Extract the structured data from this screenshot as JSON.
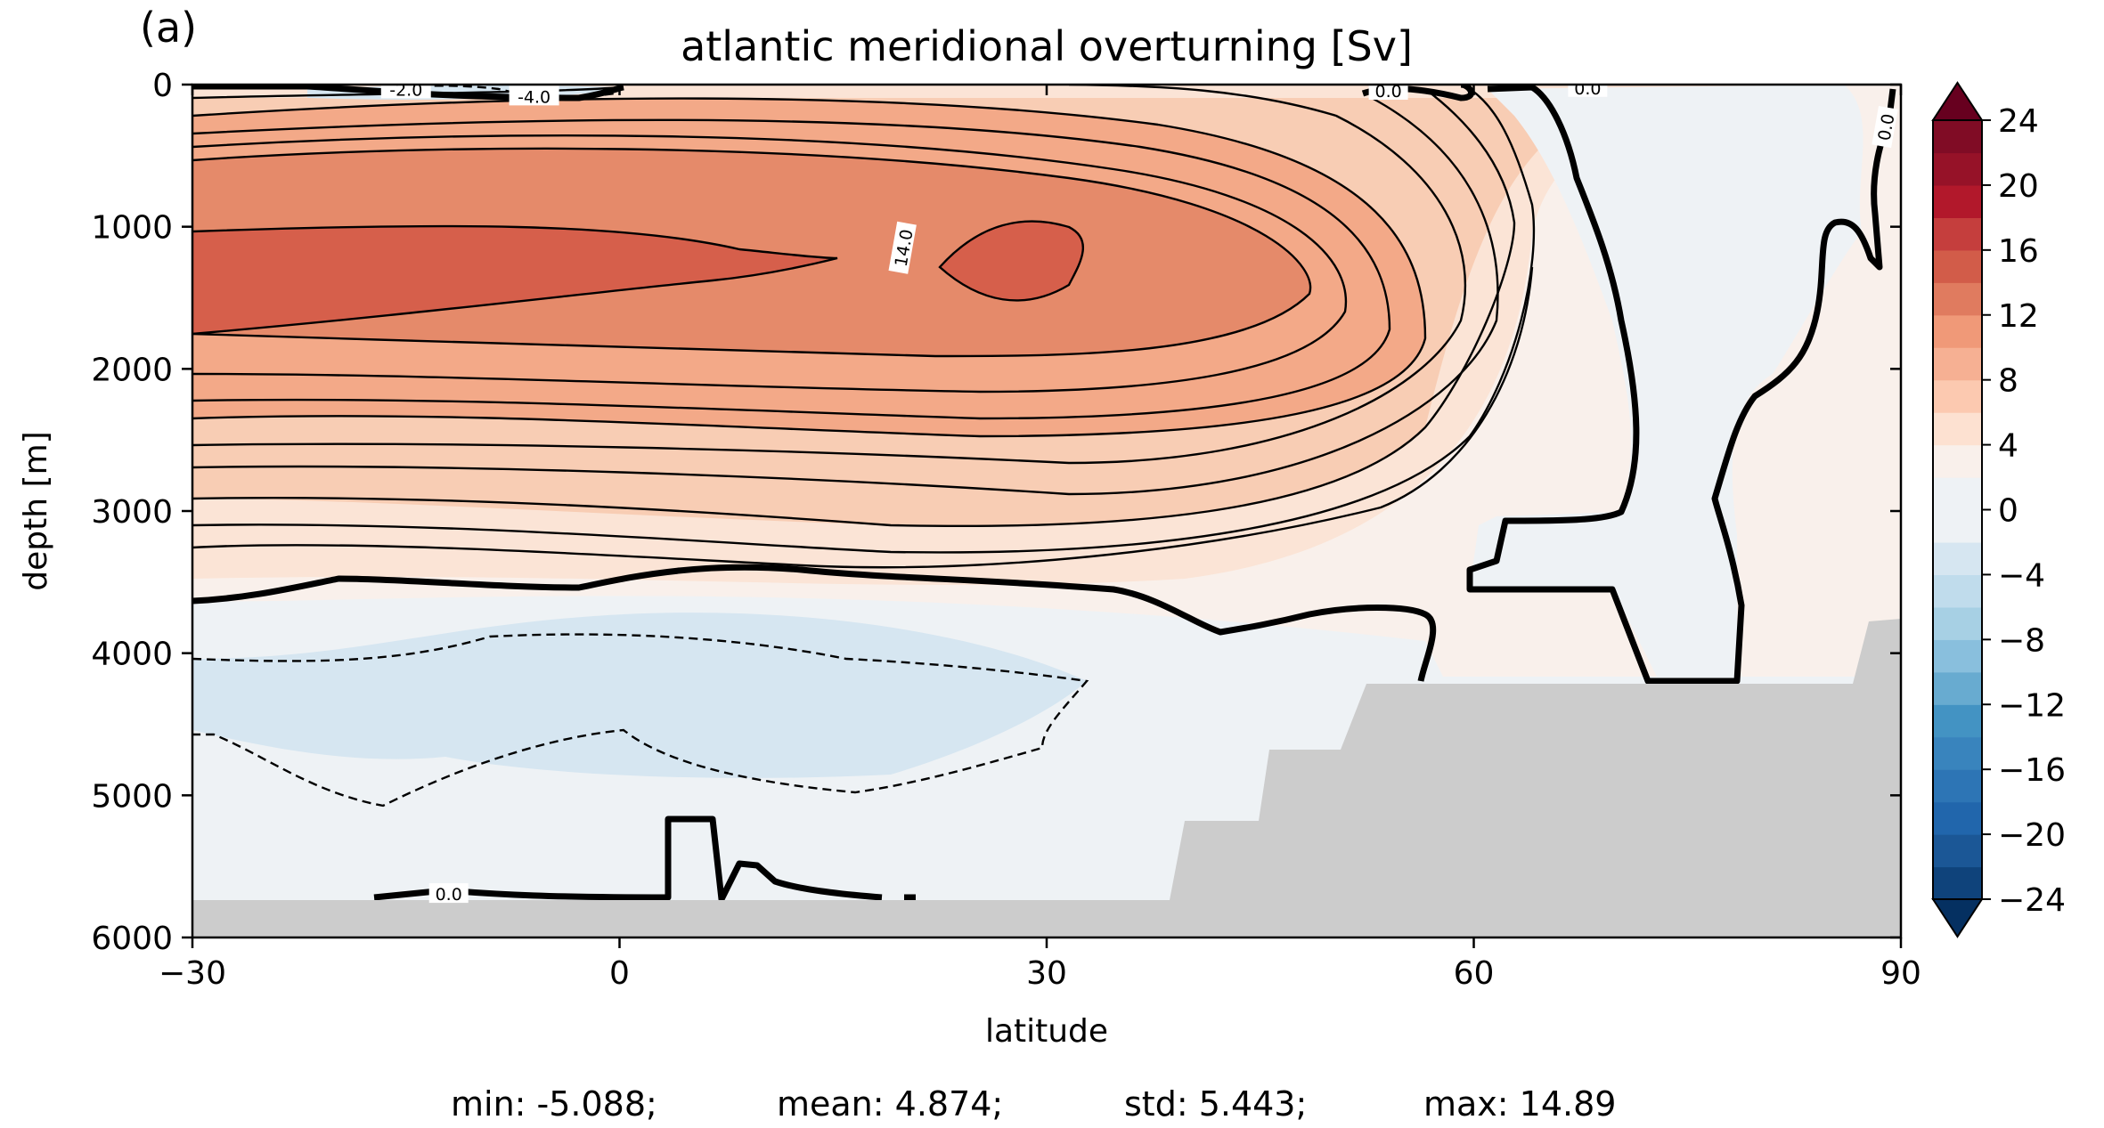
{
  "panel_label": "(a)",
  "chart_data": {
    "type": "heatmap",
    "title": "atlantic meridional overturning [Sv]",
    "xlabel": "latitude",
    "ylabel": "depth [m]",
    "xlim": [
      -30,
      90
    ],
    "ylim": [
      6000,
      0
    ],
    "x_ticks": [
      -30,
      0,
      30,
      60,
      90
    ],
    "x_tick_labels": [
      "−30",
      "0",
      "30",
      "60",
      "90"
    ],
    "y_ticks": [
      0,
      1000,
      2000,
      3000,
      4000,
      5000,
      6000
    ],
    "y_tick_labels": [
      "0",
      "1000",
      "2000",
      "3000",
      "4000",
      "5000",
      "6000"
    ],
    "colorbar": {
      "cmap": "RdBu_r",
      "extend": "both",
      "min": -24,
      "max": 24,
      "level_step": 2,
      "ticks": [
        24,
        20,
        16,
        12,
        8,
        4,
        0,
        -4,
        -8,
        -12,
        -16,
        -20,
        -24
      ],
      "tick_labels": [
        "24",
        "20",
        "16",
        "12",
        "8",
        "4",
        "0",
        "−4",
        "−8",
        "−12",
        "−16",
        "−20",
        "−24"
      ],
      "colors": [
        "#053061",
        "#0f437b",
        "#1b5796",
        "#2166ac",
        "#2d75b5",
        "#3984bd",
        "#4393c3",
        "#68abd0",
        "#89bfdd",
        "#a7d0e4",
        "#c0dcec",
        "#d6e6f1",
        "#eef2f5",
        "#f9f0eb",
        "#fde1d1",
        "#fcc9b0",
        "#f6b093",
        "#f09978",
        "#e07b5f",
        "#d25c49",
        "#c53e3d",
        "#b2182b",
        "#961228",
        "#800c25",
        "#67001f"
      ]
    },
    "land_color": "#cccccc",
    "contour_labels": [
      {
        "text": "-2.0",
        "lat": -15,
        "depth": 40
      },
      {
        "text": "-4.0",
        "lat": -6,
        "depth": 90
      },
      {
        "text": "14.0",
        "lat": 20,
        "depth": 1150,
        "rotate": -80
      },
      {
        "text": "0.0",
        "lat": 54,
        "depth": 50
      },
      {
        "text": "0.0",
        "lat": 68,
        "depth": 30
      },
      {
        "text": "0.0",
        "lat": 89,
        "depth": 300,
        "rotate": -80
      },
      {
        "text": "0.0",
        "lat": -12,
        "depth": 5700
      }
    ],
    "field_summary": {
      "max_cell_lat": 27,
      "max_cell_depth": 1300,
      "max_value": 14.89,
      "min_cell_lat": 5,
      "min_cell_depth": 4400,
      "min_value": -5.088
    }
  },
  "stats": {
    "min": "min: -5.088;",
    "mean": "mean: 4.874;",
    "std": "std: 5.443;",
    "max": "max: 14.89"
  }
}
